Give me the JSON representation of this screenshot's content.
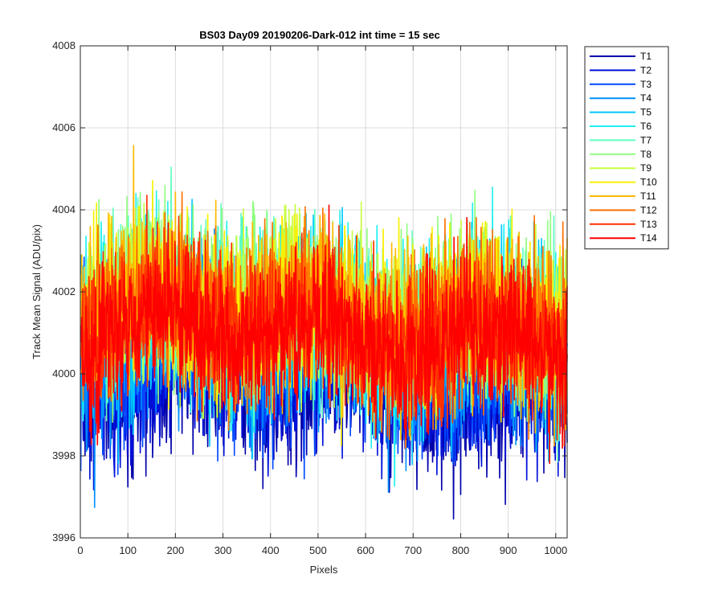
{
  "chart_data": {
    "type": "line",
    "title": "BS03 Day09 20190206-Dark-012 int time = 15 sec",
    "xlabel": "Pixels",
    "ylabel": "Track Mean Signal (ADU/pix)",
    "xlim": [
      0,
      1024
    ],
    "ylim": [
      3996,
      4008
    ],
    "xticks": [
      0,
      100,
      200,
      300,
      400,
      500,
      600,
      700,
      800,
      900,
      1000
    ],
    "yticks": [
      3996,
      3998,
      4000,
      4002,
      4004,
      4006,
      4008
    ],
    "grid": true,
    "legend_position": "outside-top-right",
    "pixel_count": 1024,
    "series": [
      {
        "name": "T1",
        "color": "#0000AA",
        "mean": 3999.6,
        "noise": 0.9
      },
      {
        "name": "T2",
        "color": "#0010D8",
        "mean": 3999.8,
        "noise": 0.9
      },
      {
        "name": "T3",
        "color": "#0048FF",
        "mean": 4000.2,
        "noise": 0.95
      },
      {
        "name": "T4",
        "color": "#0090FF",
        "mean": 4000.6,
        "noise": 1.0
      },
      {
        "name": "T5",
        "color": "#00C8FF",
        "mean": 4001.0,
        "noise": 1.05
      },
      {
        "name": "T6",
        "color": "#20F0F0",
        "mean": 4001.3,
        "noise": 1.05
      },
      {
        "name": "T7",
        "color": "#60FFC0",
        "mean": 4001.5,
        "noise": 1.05
      },
      {
        "name": "T8",
        "color": "#90FF80",
        "mean": 4001.6,
        "noise": 1.05
      },
      {
        "name": "T9",
        "color": "#C8FF40",
        "mean": 4001.6,
        "noise": 1.0
      },
      {
        "name": "T10",
        "color": "#F8F000",
        "mean": 4001.5,
        "noise": 1.0
      },
      {
        "name": "T11",
        "color": "#FFB800",
        "mean": 4001.4,
        "noise": 1.0
      },
      {
        "name": "T12",
        "color": "#FF7000",
        "mean": 4001.3,
        "noise": 1.0
      },
      {
        "name": "T13",
        "color": "#FF3000",
        "mean": 4001.1,
        "noise": 0.95
      },
      {
        "name": "T14",
        "color": "#FF0000",
        "mean": 4000.9,
        "noise": 0.9
      }
    ]
  }
}
